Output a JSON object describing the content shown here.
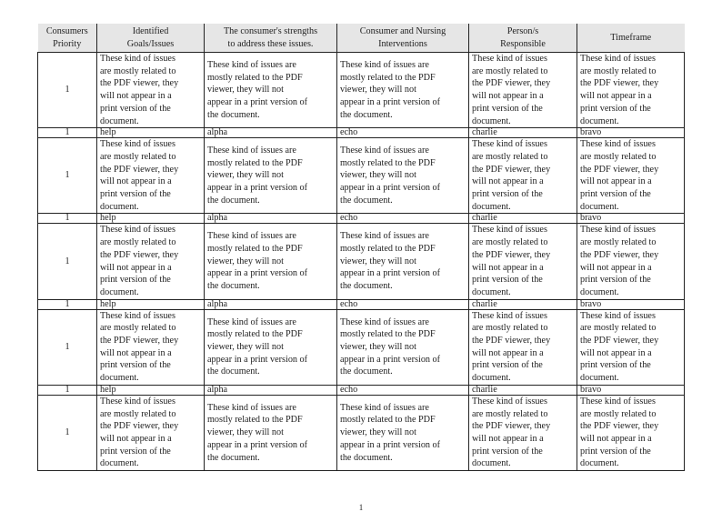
{
  "table": {
    "headers": [
      [
        "Consumers",
        "Priority"
      ],
      [
        "Identified",
        "Goals/Issues"
      ],
      [
        "The consumer's strengths",
        "to address these issues."
      ],
      [
        "Consumer and Nursing",
        "Interventions"
      ],
      [
        "Person/s",
        "Responsible"
      ],
      [
        "Timeframe"
      ]
    ],
    "rows": [
      {
        "type": "tall",
        "cells": [
          [
            "1"
          ],
          [
            "These kind of issues",
            "are mostly related to",
            "the PDF viewer, they",
            "will not appear in a",
            "print version of the",
            "document."
          ],
          [
            "These kind of issues are",
            "mostly related to the PDF",
            "viewer, they will not",
            "appear in a print version of",
            "the document."
          ],
          [
            "These kind of issues are",
            "mostly related to the PDF",
            "viewer, they will not",
            "appear in a print version of",
            "the document."
          ],
          [
            "These kind of issues",
            "are mostly related to",
            "the PDF viewer, they",
            "will not appear in a",
            "print version of the",
            "document."
          ],
          [
            "These kind of issues",
            "are mostly related to",
            "the PDF viewer, they",
            "will not appear in a",
            "print version of the",
            "document."
          ]
        ]
      },
      {
        "type": "short",
        "cells": [
          [
            "1"
          ],
          [
            "help"
          ],
          [
            "alpha"
          ],
          [
            "echo"
          ],
          [
            "charlie"
          ],
          [
            "bravo"
          ]
        ]
      },
      {
        "type": "tall",
        "cells": [
          [
            "1"
          ],
          [
            "These kind of issues",
            "are mostly related to",
            "the PDF viewer, they",
            "will not appear in a",
            "print version of the",
            "document."
          ],
          [
            "These kind of issues are",
            "mostly related to the PDF",
            "viewer, they will not",
            "appear in a print version of",
            "the document."
          ],
          [
            "These kind of issues are",
            "mostly related to the PDF",
            "viewer, they will not",
            "appear in a print version of",
            "the document."
          ],
          [
            "These kind of issues",
            "are mostly related to",
            "the PDF viewer, they",
            "will not appear in a",
            "print version of the",
            "document."
          ],
          [
            "These kind of issues",
            "are mostly related to",
            "the PDF viewer, they",
            "will not appear in a",
            "print version of the",
            "document."
          ]
        ]
      },
      {
        "type": "short",
        "cells": [
          [
            "1"
          ],
          [
            "help"
          ],
          [
            "alpha"
          ],
          [
            "echo"
          ],
          [
            "charlie"
          ],
          [
            "bravo"
          ]
        ]
      },
      {
        "type": "tall",
        "cells": [
          [
            "1"
          ],
          [
            "These kind of issues",
            "are mostly related to",
            "the PDF viewer, they",
            "will not appear in a",
            "print version of the",
            "document."
          ],
          [
            "These kind of issues are",
            "mostly related to the PDF",
            "viewer, they will not",
            "appear in a print version of",
            "the document."
          ],
          [
            "These kind of issues are",
            "mostly related to the PDF",
            "viewer, they will not",
            "appear in a print version of",
            "the document."
          ],
          [
            "These kind of issues",
            "are mostly related to",
            "the PDF viewer, they",
            "will not appear in a",
            "print version of the",
            "document."
          ],
          [
            "These kind of issues",
            "are mostly related to",
            "the PDF viewer, they",
            "will not appear in a",
            "print version of the",
            "document."
          ]
        ]
      },
      {
        "type": "short",
        "cells": [
          [
            "1"
          ],
          [
            "help"
          ],
          [
            "alpha"
          ],
          [
            "echo"
          ],
          [
            "charlie"
          ],
          [
            "bravo"
          ]
        ]
      },
      {
        "type": "tall",
        "cells": [
          [
            "1"
          ],
          [
            "These kind of issues",
            "are mostly related to",
            "the PDF viewer, they",
            "will not appear in a",
            "print version of the",
            "document."
          ],
          [
            "These kind of issues are",
            "mostly related to the PDF",
            "viewer, they will not",
            "appear in a print version of",
            "the document."
          ],
          [
            "These kind of issues are",
            "mostly related to the PDF",
            "viewer, they will not",
            "appear in a print version of",
            "the document."
          ],
          [
            "These kind of issues",
            "are mostly related to",
            "the PDF viewer, they",
            "will not appear in a",
            "print version of the",
            "document."
          ],
          [
            "These kind of issues",
            "are mostly related to",
            "the PDF viewer, they",
            "will not appear in a",
            "print version of the",
            "document."
          ]
        ]
      },
      {
        "type": "short",
        "cells": [
          [
            "1"
          ],
          [
            "help"
          ],
          [
            "alpha"
          ],
          [
            "echo"
          ],
          [
            "charlie"
          ],
          [
            "bravo"
          ]
        ]
      },
      {
        "type": "tall",
        "cells": [
          [
            "1"
          ],
          [
            "These kind of issues",
            "are mostly related to",
            "the PDF viewer, they",
            "will not appear in a",
            "print version of the",
            "document."
          ],
          [
            "These kind of issues are",
            "mostly related to the PDF",
            "viewer, they will not",
            "appear in a print version of",
            "the document."
          ],
          [
            "These kind of issues are",
            "mostly related to the PDF",
            "viewer, they will not",
            "appear in a print version of",
            "the document."
          ],
          [
            "These kind of issues",
            "are mostly related to",
            "the PDF viewer, they",
            "will not appear in a",
            "print version of the",
            "document."
          ],
          [
            "These kind of issues",
            "are mostly related to",
            "the PDF viewer, they",
            "will not appear in a",
            "print version of the",
            "document."
          ]
        ]
      }
    ]
  },
  "page_number": "1"
}
